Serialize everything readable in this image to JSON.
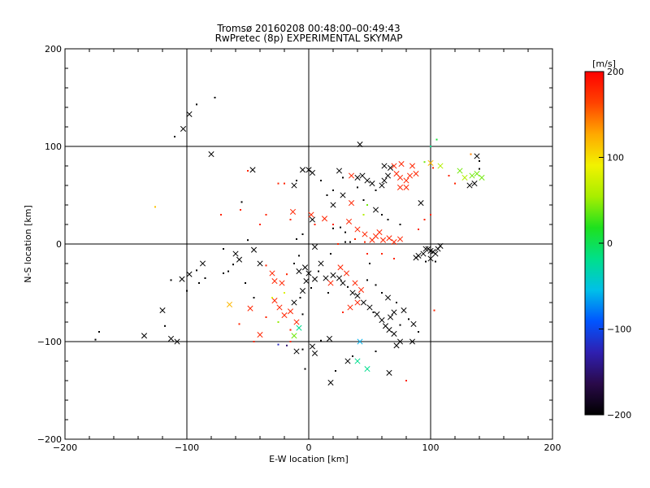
{
  "chart_data": {
    "type": "scatter",
    "title": "Tromsø 20160208 00:48:00–00:49:43",
    "subtitle": "RwPretec (8p) EXPERIMENTAL SKYMAP",
    "xlabel": "E-W location [km]",
    "ylabel": "N-S location [km]",
    "xlim": [
      -200,
      200
    ],
    "ylim": [
      -200,
      200
    ],
    "xticks": [
      -200,
      -100,
      0,
      100,
      200
    ],
    "yticks": [
      -200,
      -100,
      0,
      100,
      200
    ],
    "grid": true,
    "colorbar": {
      "label": "[m/s]",
      "range": [
        -200,
        200
      ],
      "ticks": [
        200,
        100,
        0,
        -100,
        -200
      ],
      "colormap": [
        "#000000",
        "#2a0a4a",
        "#2f1fb0",
        "#0055ff",
        "#00c0e8",
        "#00e08a",
        "#1ee11e",
        "#a8ee00",
        "#f2f200",
        "#ffa800",
        "#ff4200",
        "#ff0000"
      ]
    },
    "marker_styles": [
      "x",
      "dot"
    ],
    "points": [
      [
        -110,
        110,
        "dot",
        -200
      ],
      [
        -103,
        118,
        "x",
        -200
      ],
      [
        -98,
        133,
        "x",
        -200
      ],
      [
        -92,
        143,
        "dot",
        -200
      ],
      [
        -77,
        150,
        "dot",
        -200
      ],
      [
        -80,
        92,
        "x",
        -200
      ],
      [
        -46,
        76,
        "x",
        -200
      ],
      [
        -55,
        43,
        "dot",
        -200
      ],
      [
        -126,
        38,
        "dot",
        115
      ],
      [
        -72,
        30,
        "dot",
        180
      ],
      [
        -56,
        35,
        "dot",
        180
      ],
      [
        -50,
        4,
        "dot",
        -200
      ],
      [
        -45,
        -6,
        "x",
        -200
      ],
      [
        -40,
        -20,
        "x",
        -200
      ],
      [
        -57,
        -16,
        "x",
        -200
      ],
      [
        -62,
        -21,
        "dot",
        -200
      ],
      [
        -70,
        -30,
        "dot",
        -200
      ],
      [
        -87,
        -20,
        "x",
        -200
      ],
      [
        -92,
        -27,
        "dot",
        -200
      ],
      [
        -98,
        -31,
        "x",
        -200
      ],
      [
        -90,
        -40,
        "dot",
        -200
      ],
      [
        -85,
        -35,
        "dot",
        -200
      ],
      [
        -100,
        -48,
        "dot",
        -200
      ],
      [
        -104,
        -36,
        "x",
        -200
      ],
      [
        -113,
        -37,
        "dot",
        -200
      ],
      [
        -120,
        -68,
        "x",
        -200
      ],
      [
        -113,
        -97,
        "x",
        -200
      ],
      [
        -108,
        -100,
        "x",
        -200
      ],
      [
        -118,
        -84,
        "dot",
        -200
      ],
      [
        -135,
        -94,
        "x",
        -200
      ],
      [
        -172,
        -90,
        "dot",
        -200
      ],
      [
        -175,
        -98,
        "dot",
        -200
      ],
      [
        -65,
        -62,
        "x",
        120
      ],
      [
        -57,
        -82,
        "dot",
        180
      ],
      [
        -48,
        -66,
        "x",
        180
      ],
      [
        -40,
        -93,
        "x",
        180
      ],
      [
        -45,
        -100,
        "dot",
        180
      ],
      [
        -22,
        -40,
        "x",
        180
      ],
      [
        -18,
        -31,
        "dot",
        180
      ],
      [
        -24,
        -65,
        "x",
        180
      ],
      [
        -20,
        -73,
        "x",
        180
      ],
      [
        -15,
        -69,
        "x",
        180
      ],
      [
        -10,
        -80,
        "x",
        180
      ],
      [
        -12,
        -94,
        "x",
        40
      ],
      [
        -15,
        -88,
        "dot",
        180
      ],
      [
        -8,
        -86,
        "x",
        -20
      ],
      [
        -5,
        -72,
        "dot",
        -200
      ],
      [
        -18,
        -104,
        "dot",
        -150
      ],
      [
        -10,
        -110,
        "x",
        -200
      ],
      [
        -5,
        -108,
        "dot",
        -200
      ],
      [
        3,
        -105,
        "x",
        -200
      ],
      [
        10,
        -99,
        "dot",
        -200
      ],
      [
        17,
        -97,
        "x",
        -200
      ],
      [
        5,
        -112,
        "x",
        -200
      ],
      [
        -3,
        -128,
        "dot",
        -200
      ],
      [
        -15,
        -100,
        "dot",
        180
      ],
      [
        -25,
        -80,
        "dot",
        50
      ],
      [
        -25,
        -103,
        "dot",
        -120
      ],
      [
        -35,
        -75,
        "dot",
        180
      ],
      [
        -28,
        -58,
        "x",
        180
      ],
      [
        -8,
        -28,
        "x",
        -200
      ],
      [
        -3,
        -24,
        "x",
        -200
      ],
      [
        0,
        -30,
        "x",
        -200
      ],
      [
        -2,
        -38,
        "x",
        -200
      ],
      [
        -5,
        -48,
        "x",
        -200
      ],
      [
        -7,
        -55,
        "dot",
        -200
      ],
      [
        -12,
        -60,
        "x",
        -200
      ],
      [
        2,
        -45,
        "dot",
        -200
      ],
      [
        5,
        -36,
        "x",
        -200
      ],
      [
        10,
        -20,
        "x",
        -200
      ],
      [
        8,
        -28,
        "dot",
        -200
      ],
      [
        14,
        -35,
        "x",
        -200
      ],
      [
        20,
        -32,
        "x",
        -200
      ],
      [
        25,
        -35,
        "x",
        -200
      ],
      [
        28,
        -40,
        "x",
        -200
      ],
      [
        32,
        -44,
        "dot",
        -200
      ],
      [
        36,
        -50,
        "x",
        -200
      ],
      [
        40,
        -53,
        "x",
        -200
      ],
      [
        45,
        -60,
        "x",
        -200
      ],
      [
        50,
        -65,
        "x",
        -200
      ],
      [
        53,
        -70,
        "dot",
        -200
      ],
      [
        56,
        -72,
        "x",
        -200
      ],
      [
        60,
        -78,
        "x",
        -200
      ],
      [
        63,
        -84,
        "x",
        -200
      ],
      [
        66,
        -88,
        "x",
        -200
      ],
      [
        70,
        -92,
        "x",
        -200
      ],
      [
        75,
        -100,
        "x",
        -200
      ],
      [
        72,
        -104,
        "x",
        -200
      ],
      [
        85,
        -100,
        "x",
        -200
      ],
      [
        66,
        -132,
        "x",
        -200
      ],
      [
        55,
        -110,
        "dot",
        -200
      ],
      [
        32,
        -120,
        "x",
        -200
      ],
      [
        36,
        -115,
        "dot",
        -200
      ],
      [
        40,
        -120,
        "x",
        -20
      ],
      [
        48,
        -128,
        "x",
        -20
      ],
      [
        42,
        -100,
        "x",
        -60
      ],
      [
        18,
        -142,
        "x",
        -200
      ],
      [
        22,
        -130,
        "dot",
        -200
      ],
      [
        80,
        -140,
        "dot",
        180
      ],
      [
        18,
        -40,
        "x",
        180
      ],
      [
        26,
        -24,
        "x",
        180
      ],
      [
        31,
        -30,
        "x",
        180
      ],
      [
        38,
        -40,
        "x",
        180
      ],
      [
        43,
        -47,
        "x",
        180
      ],
      [
        40,
        -60,
        "x",
        180
      ],
      [
        34,
        -65,
        "x",
        180
      ],
      [
        28,
        -70,
        "dot",
        180
      ],
      [
        16,
        -50,
        "dot",
        -200
      ],
      [
        48,
        -37,
        "dot",
        -200
      ],
      [
        55,
        -42,
        "dot",
        -200
      ],
      [
        60,
        -50,
        "dot",
        -200
      ],
      [
        65,
        -55,
        "x",
        -200
      ],
      [
        72,
        -60,
        "dot",
        -200
      ],
      [
        78,
        -68,
        "x",
        -200
      ],
      [
        82,
        -77,
        "dot",
        -200
      ],
      [
        70,
        -70,
        "x",
        -200
      ],
      [
        67,
        -75,
        "x",
        -200
      ],
      [
        75,
        -83,
        "dot",
        -200
      ],
      [
        86,
        -82,
        "x",
        -200
      ],
      [
        90,
        -90,
        "dot",
        -200
      ],
      [
        -30,
        -30,
        "x",
        180
      ],
      [
        -35,
        -22,
        "dot",
        180
      ],
      [
        -28,
        -38,
        "x",
        180
      ],
      [
        -20,
        -50,
        "dot",
        80
      ],
      [
        -30,
        -55,
        "dot",
        80
      ],
      [
        -13,
        33,
        "x",
        180
      ],
      [
        2,
        30,
        "x",
        180
      ],
      [
        13,
        26,
        "x",
        180
      ],
      [
        20,
        20,
        "dot",
        180
      ],
      [
        5,
        20,
        "dot",
        180
      ],
      [
        -15,
        25,
        "dot",
        180
      ],
      [
        3,
        25,
        "x",
        -200
      ],
      [
        33,
        23,
        "x",
        180
      ],
      [
        40,
        15,
        "x",
        180
      ],
      [
        46,
        10,
        "x",
        180
      ],
      [
        52,
        4,
        "x",
        180
      ],
      [
        55,
        8,
        "x",
        180
      ],
      [
        58,
        12,
        "x",
        180
      ],
      [
        61,
        4,
        "x",
        180
      ],
      [
        66,
        6,
        "x",
        180
      ],
      [
        70,
        2,
        "x",
        180
      ],
      [
        75,
        5,
        "x",
        180
      ],
      [
        46,
        2,
        "dot",
        180
      ],
      [
        38,
        5,
        "dot",
        180
      ],
      [
        30,
        2,
        "dot",
        -200
      ],
      [
        34,
        2,
        "dot",
        -200
      ],
      [
        30,
        12,
        "dot",
        -200
      ],
      [
        20,
        16,
        "dot",
        -200
      ],
      [
        26,
        17,
        "dot",
        -200
      ],
      [
        18,
        -10,
        "dot",
        -200
      ],
      [
        24,
        0,
        "dot",
        180
      ],
      [
        60,
        -10,
        "dot",
        180
      ],
      [
        70,
        -15,
        "dot",
        180
      ],
      [
        48,
        -10,
        "dot",
        180
      ],
      [
        50,
        -20,
        "dot",
        -200
      ],
      [
        45,
        30,
        "dot",
        60
      ],
      [
        48,
        40,
        "dot",
        40
      ],
      [
        55,
        55,
        "dot",
        -200
      ],
      [
        60,
        60,
        "x",
        -200
      ],
      [
        62,
        65,
        "x",
        -200
      ],
      [
        65,
        70,
        "x",
        -200
      ],
      [
        62,
        80,
        "x",
        -200
      ],
      [
        67,
        78,
        "x",
        -200
      ],
      [
        72,
        72,
        "x",
        180
      ],
      [
        75,
        68,
        "x",
        180
      ],
      [
        80,
        65,
        "x",
        180
      ],
      [
        83,
        70,
        "x",
        180
      ],
      [
        88,
        72,
        "x",
        180
      ],
      [
        80,
        58,
        "x",
        180
      ],
      [
        75,
        58,
        "x",
        180
      ],
      [
        70,
        80,
        "x",
        180
      ],
      [
        76,
        82,
        "x",
        180
      ],
      [
        85,
        80,
        "x",
        180
      ],
      [
        95,
        84,
        "dot",
        40
      ],
      [
        102,
        78,
        "dot",
        180
      ],
      [
        100,
        83,
        "x",
        120
      ],
      [
        108,
        80,
        "x",
        60
      ],
      [
        115,
        70,
        "dot",
        180
      ],
      [
        120,
        62,
        "dot",
        180
      ],
      [
        128,
        68,
        "x",
        60
      ],
      [
        124,
        75,
        "x",
        40
      ],
      [
        132,
        60,
        "x",
        -200
      ],
      [
        136,
        62,
        "x",
        -200
      ],
      [
        134,
        70,
        "x",
        40
      ],
      [
        138,
        72,
        "x",
        40
      ],
      [
        142,
        68,
        "x",
        40
      ],
      [
        140,
        85,
        "dot",
        -200
      ],
      [
        138,
        90,
        "x",
        -200
      ],
      [
        133,
        92,
        "dot",
        140
      ],
      [
        140,
        77,
        "dot",
        -200
      ],
      [
        105,
        107,
        "dot",
        10
      ],
      [
        100,
        100,
        "dot",
        -20
      ],
      [
        42,
        102,
        "x",
        -200
      ],
      [
        40,
        68,
        "x",
        -200
      ],
      [
        44,
        70,
        "x",
        -200
      ],
      [
        48,
        65,
        "x",
        -200
      ],
      [
        52,
        62,
        "x",
        -200
      ],
      [
        35,
        70,
        "x",
        180
      ],
      [
        28,
        68,
        "dot",
        -200
      ],
      [
        25,
        75,
        "x",
        -200
      ],
      [
        -5,
        76,
        "x",
        -200
      ],
      [
        0,
        76,
        "x",
        -200
      ],
      [
        3,
        73,
        "x",
        -200
      ],
      [
        -10,
        65,
        "dot",
        -200
      ],
      [
        -12,
        60,
        "x",
        -200
      ],
      [
        -25,
        62,
        "dot",
        180
      ],
      [
        -20,
        62,
        "dot",
        180
      ],
      [
        -50,
        75,
        "dot",
        180
      ],
      [
        -40,
        20,
        "dot",
        180
      ],
      [
        -35,
        30,
        "dot",
        180
      ],
      [
        20,
        40,
        "x",
        -200
      ],
      [
        28,
        50,
        "x",
        -200
      ],
      [
        35,
        42,
        "x",
        180
      ],
      [
        45,
        45,
        "dot",
        -200
      ],
      [
        55,
        35,
        "x",
        -200
      ],
      [
        60,
        30,
        "dot",
        -200
      ],
      [
        65,
        25,
        "dot",
        -200
      ],
      [
        75,
        20,
        "dot",
        -200
      ],
      [
        90,
        15,
        "dot",
        180
      ],
      [
        95,
        25,
        "dot",
        180
      ],
      [
        100,
        30,
        "dot",
        180
      ],
      [
        92,
        42,
        "x",
        -200
      ],
      [
        96,
        -5,
        "x",
        -200
      ],
      [
        98,
        -5,
        "x",
        -200
      ],
      [
        100,
        -7,
        "x",
        -200
      ],
      [
        102,
        -8,
        "x",
        -200
      ],
      [
        104,
        -10,
        "x",
        -200
      ],
      [
        106,
        -5,
        "x",
        -200
      ],
      [
        108,
        -2,
        "x",
        -200
      ],
      [
        94,
        -10,
        "x",
        -200
      ],
      [
        90,
        -12,
        "x",
        -200
      ],
      [
        88,
        -14,
        "x",
        -200
      ],
      [
        100,
        -15,
        "x",
        -200
      ],
      [
        104,
        -18,
        "dot",
        -200
      ],
      [
        96,
        -18,
        "dot",
        -200
      ],
      [
        103,
        -68,
        "dot",
        180
      ],
      [
        -10,
        5,
        "dot",
        -200
      ],
      [
        -5,
        10,
        "dot",
        -200
      ],
      [
        5,
        -3,
        "x",
        -200
      ],
      [
        -8,
        -12,
        "dot",
        -200
      ],
      [
        -12,
        -20,
        "dot",
        -200
      ],
      [
        -60,
        -10,
        "x",
        -200
      ],
      [
        -70,
        -5,
        "dot",
        -200
      ],
      [
        -66,
        -28,
        "dot",
        -200
      ],
      [
        -52,
        -40,
        "dot",
        -200
      ],
      [
        -45,
        -55,
        "dot",
        -200
      ],
      [
        15,
        50,
        "dot",
        -200
      ],
      [
        20,
        55,
        "dot",
        -200
      ],
      [
        10,
        65,
        "dot",
        -200
      ],
      [
        40,
        58,
        "dot",
        -200
      ]
    ]
  }
}
